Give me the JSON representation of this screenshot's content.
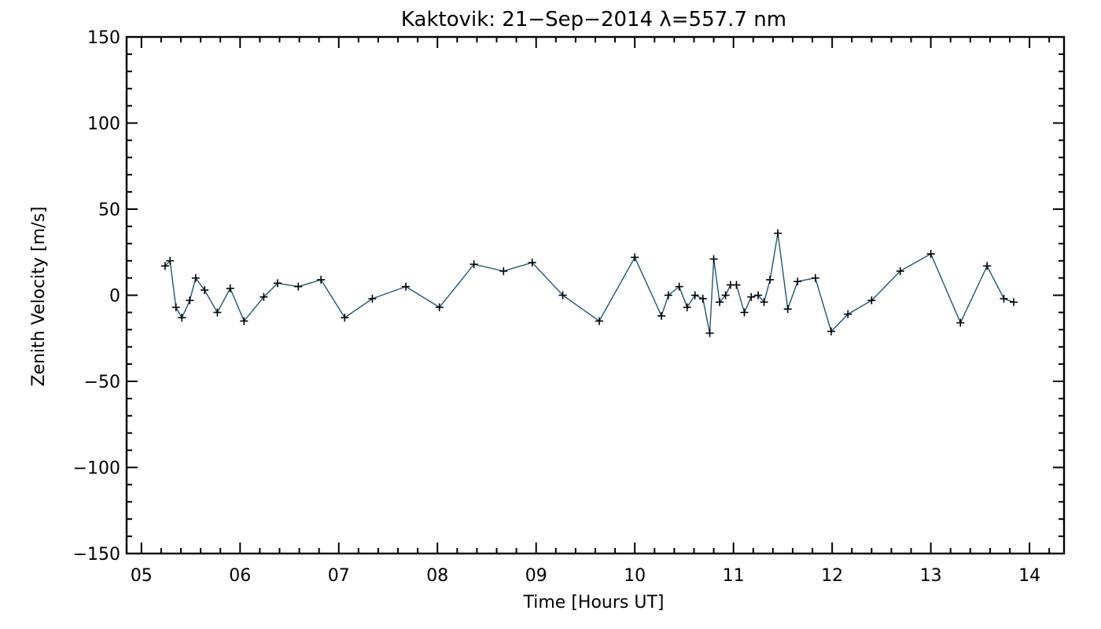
{
  "chart_data": {
    "type": "line",
    "title": "Kaktovik: 21−Sep−2014 λ=557.7 nm",
    "xlabel": "Time [Hours UT]",
    "ylabel": "Zenith Velocity [m/s]",
    "xlim": [
      4.85,
      14.35
    ],
    "ylim": [
      -150,
      150
    ],
    "x_ticks": [
      {
        "value": 5,
        "label": "05"
      },
      {
        "value": 6,
        "label": "06"
      },
      {
        "value": 7,
        "label": "07"
      },
      {
        "value": 8,
        "label": "08"
      },
      {
        "value": 9,
        "label": "09"
      },
      {
        "value": 10,
        "label": "10"
      },
      {
        "value": 11,
        "label": "11"
      },
      {
        "value": 12,
        "label": "12"
      },
      {
        "value": 13,
        "label": "13"
      },
      {
        "value": 14,
        "label": "14"
      }
    ],
    "y_ticks": [
      {
        "value": 150,
        "label": "150"
      },
      {
        "value": 100,
        "label": "100"
      },
      {
        "value": 50,
        "label": "50"
      },
      {
        "value": 0,
        "label": "0"
      },
      {
        "value": -50,
        "label": "−50"
      },
      {
        "value": -100,
        "label": "−100"
      },
      {
        "value": -150,
        "label": "−150"
      }
    ],
    "grid": false,
    "marker": "+",
    "line_color": "#1f5870",
    "series": [
      {
        "x": [
          5.24,
          5.29,
          5.35,
          5.41,
          5.49,
          5.55,
          5.64,
          5.77,
          5.9,
          6.04,
          6.24,
          6.38,
          6.59,
          6.82,
          7.06,
          7.34,
          7.68,
          8.02,
          8.37,
          8.67,
          8.96,
          9.27,
          9.64,
          10.0,
          10.27,
          10.34,
          10.45,
          10.53,
          10.61,
          10.69,
          10.76,
          10.8,
          10.86,
          10.92,
          10.97,
          11.03,
          11.11,
          11.18,
          11.25,
          11.31,
          11.37,
          11.45,
          11.55,
          11.65,
          11.83,
          11.99,
          12.16,
          12.4,
          12.69,
          13.0,
          13.3,
          13.57,
          13.74,
          13.84
        ],
        "y": [
          17,
          20,
          -7,
          -13,
          -3,
          10,
          3,
          -10,
          4,
          -15,
          -1,
          7,
          5,
          9,
          -13,
          -2,
          5,
          -7,
          18,
          14,
          19,
          0,
          -15,
          22,
          -12,
          0,
          5,
          -7,
          0,
          -2,
          -22,
          21,
          -4,
          0,
          6,
          6,
          -10,
          -1,
          0,
          -4,
          9,
          36,
          -8,
          8,
          10,
          -21,
          -11,
          -3,
          14,
          24,
          -16,
          17,
          -2,
          -4
        ]
      }
    ]
  }
}
